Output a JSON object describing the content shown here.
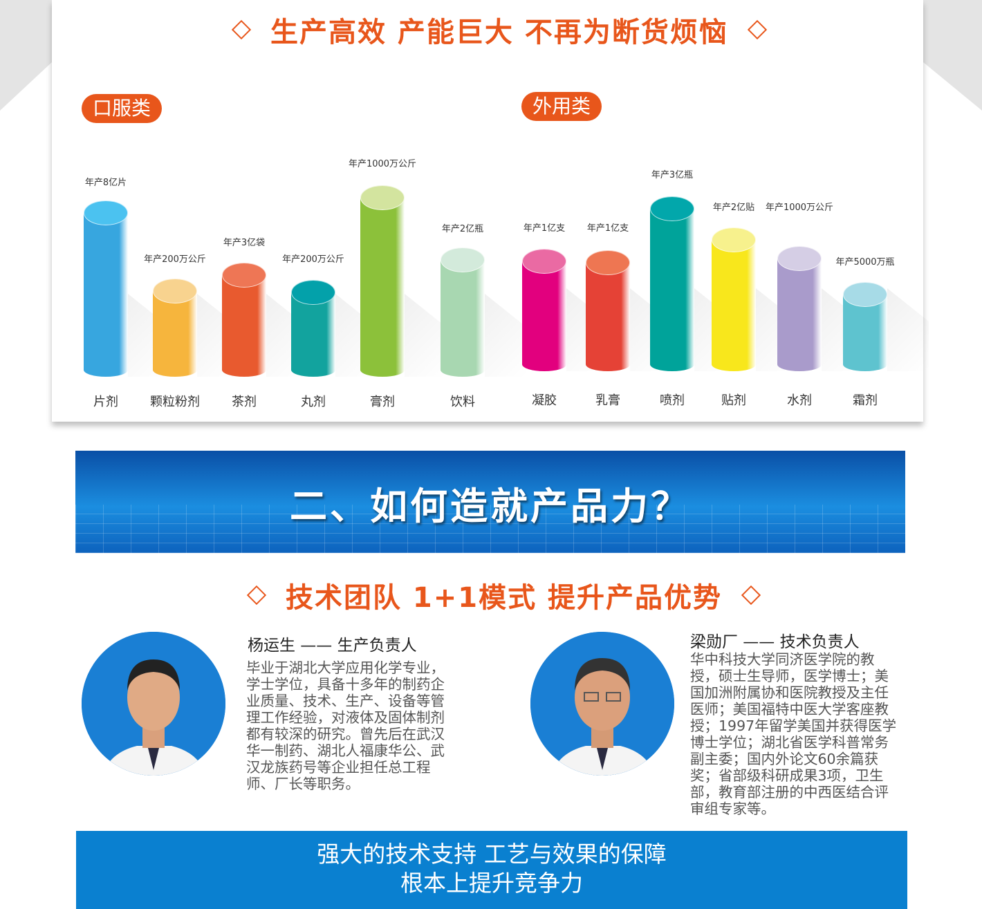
{
  "headline1": "生产高效 产能巨大 不再为断货烦恼",
  "oral": {
    "label": "口服类",
    "items": [
      {
        "name": "片剂",
        "capacity": "年产8亿片",
        "color": "#37a6df",
        "top": "#4bc2f0"
      },
      {
        "name": "颗粒粉剂",
        "capacity": "年产200万公斤",
        "color": "#f6b53d",
        "top": "#f8d38f"
      },
      {
        "name": "茶剂",
        "capacity": "年产3亿袋",
        "color": "#e85a2f",
        "top": "#ee7655"
      },
      {
        "name": "丸剂",
        "capacity": "年产200万公斤",
        "color": "#12a39e",
        "top": "#03a1aa"
      },
      {
        "name": "膏剂",
        "capacity": "年产1000万公斤",
        "color": "#8cc13a",
        "top": "#d3e49f"
      },
      {
        "name": "饮料",
        "capacity": "年产2亿瓶",
        "color": "#a8d7b1",
        "top": "#d3eadb"
      }
    ]
  },
  "external": {
    "label": "外用类",
    "items": [
      {
        "name": "凝胶",
        "capacity": "年产1亿支",
        "color": "#e2007e",
        "top": "#ea6aa3"
      },
      {
        "name": "乳膏",
        "capacity": "年产1亿支",
        "color": "#e54236",
        "top": "#ee7652"
      },
      {
        "name": "喷剂",
        "capacity": "年产3亿瓶",
        "color": "#00a39a",
        "top": "#02a7ab"
      },
      {
        "name": "贴剂",
        "capacity": "年产2亿贴",
        "color": "#f8e71c",
        "top": "#f7f18d"
      },
      {
        "name": "水剂",
        "capacity": "年产1000万公斤",
        "color": "#a99bcb",
        "top": "#d5cee5"
      },
      {
        "name": "霜剂",
        "capacity": "年产5000万瓶",
        "color": "#5ec3cf",
        "top": "#a7dbe7"
      }
    ]
  },
  "section2_title": "二、如何造就产品力？",
  "headline2": "技术团队 1+1模式 提升产品优势",
  "team": [
    {
      "name": "杨运生 —— 生产负责人",
      "bio": "毕业于湖北大学应用化学专业，学士学位，具备十多年的制药企业质量、技术、生产、设备等管理工作经验，对液体及固体制剂都有较深的研究。曾先后在武汉华一制药、湖北人福康华公、武汉龙族药号等企业担任总工程师、厂长等职务。"
    },
    {
      "name": "梁勋厂 —— 技术负责人",
      "bio": "华中科技大学同济医学院的教授，硕士生导师，医学博士；美国加洲附属协和医院教授及主任医师；美国福特中医大学客座教授；1997年留学美国并获得医学博士学位；湖北省医学科普常务副主委；国内外论文60余篇获奖；省部级科研成果3项，卫生部，教育部注册的中西医结合评审组专家等。"
    }
  ],
  "footer": {
    "line1": "强大的技术支持  工艺与效果的保障",
    "line2": "根本上提升竞争力"
  },
  "colors": {
    "accent": "#e8561b",
    "blue": "#0a80d0"
  }
}
